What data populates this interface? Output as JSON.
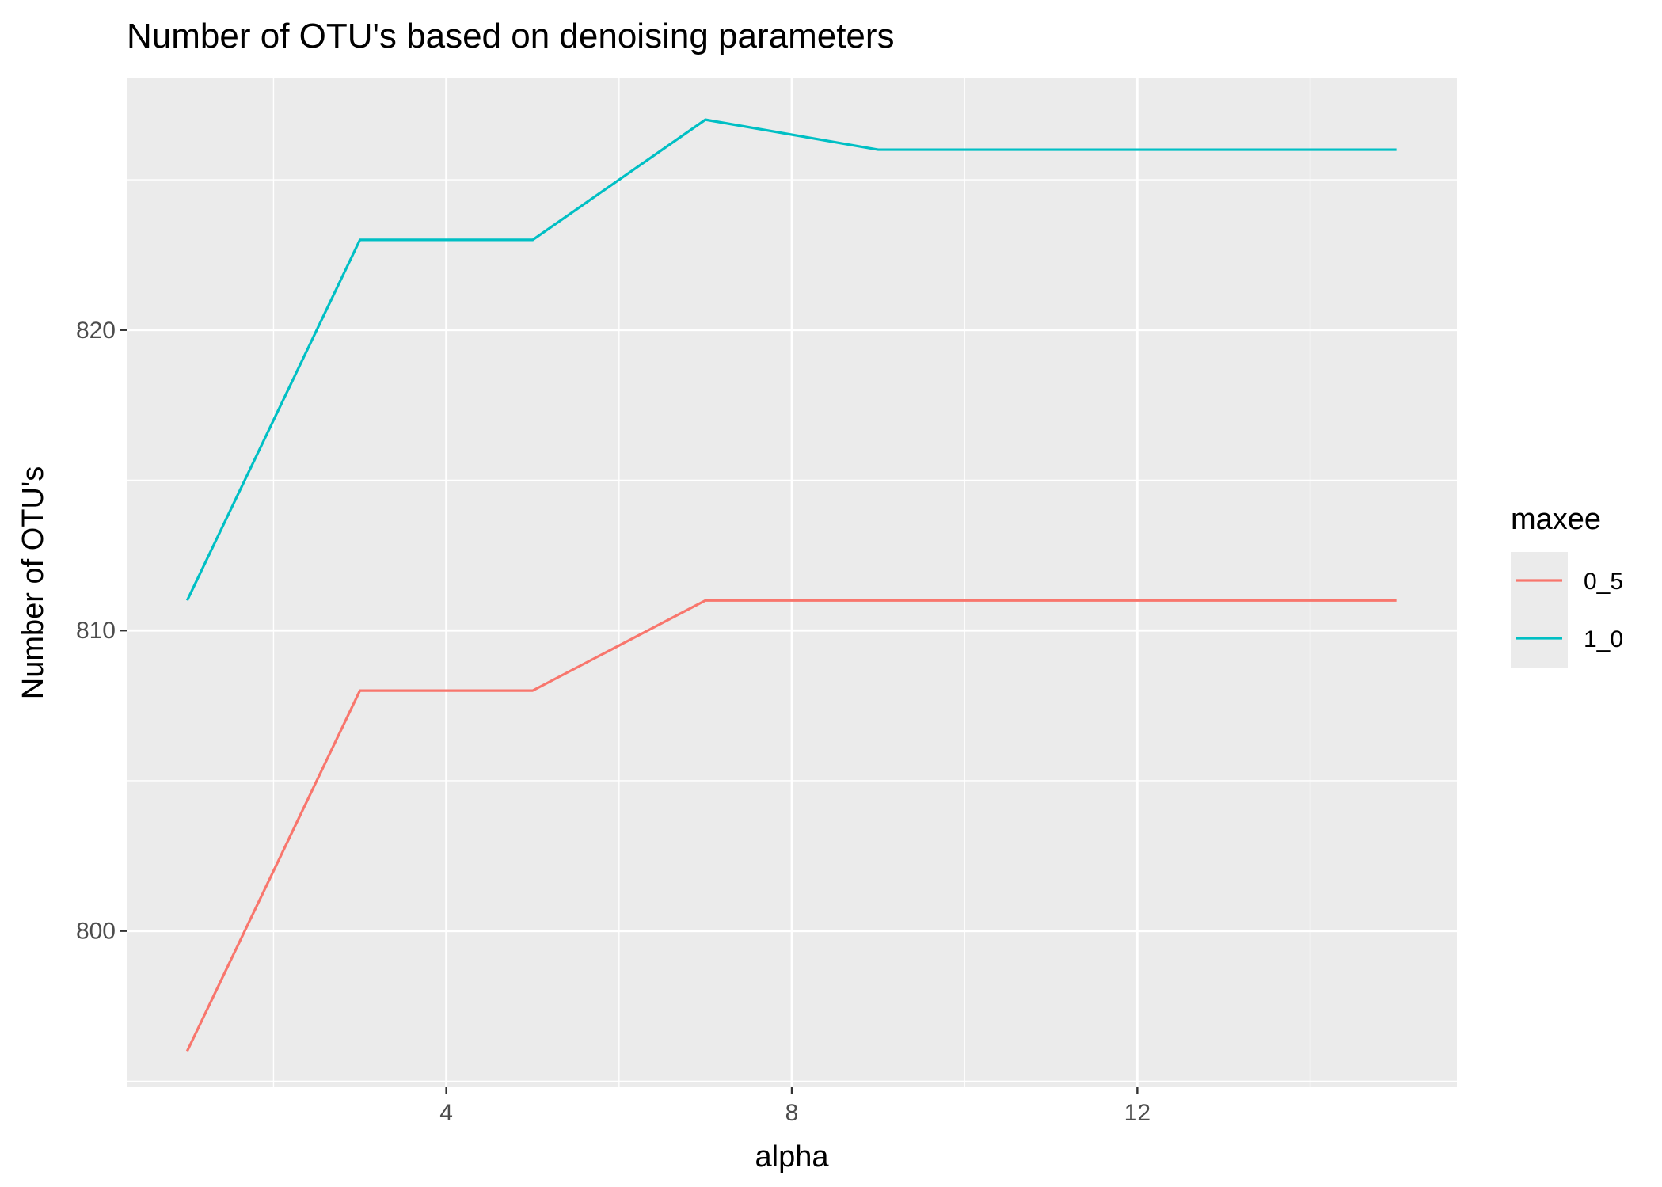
{
  "chart_data": {
    "type": "line",
    "title": "Number of OTU's based on denoising parameters",
    "xlabel": "alpha",
    "ylabel": "Number of OTU's",
    "x": [
      1,
      3,
      5,
      7,
      9,
      11,
      13,
      15
    ],
    "series": [
      {
        "name": "0_5",
        "color": "#F8766D",
        "values": [
          796,
          808,
          808,
          811,
          811,
          811,
          811,
          811
        ]
      },
      {
        "name": "1_0",
        "color": "#00BFC4",
        "values": [
          811,
          823,
          823,
          827,
          826,
          826,
          826,
          826
        ]
      }
    ],
    "xlim": [
      0.3,
      15.7
    ],
    "ylim": [
      794.8,
      828.4
    ],
    "x_major_ticks": [
      4,
      8,
      12
    ],
    "x_minor_ticks": [
      2,
      6,
      10,
      14
    ],
    "y_major_ticks": [
      800,
      810,
      820
    ],
    "y_minor_ticks": [
      795,
      805,
      815,
      825
    ],
    "grid": true,
    "panel_background": "#EBEBEB",
    "legend": {
      "title": "maxee",
      "position": "right"
    }
  }
}
